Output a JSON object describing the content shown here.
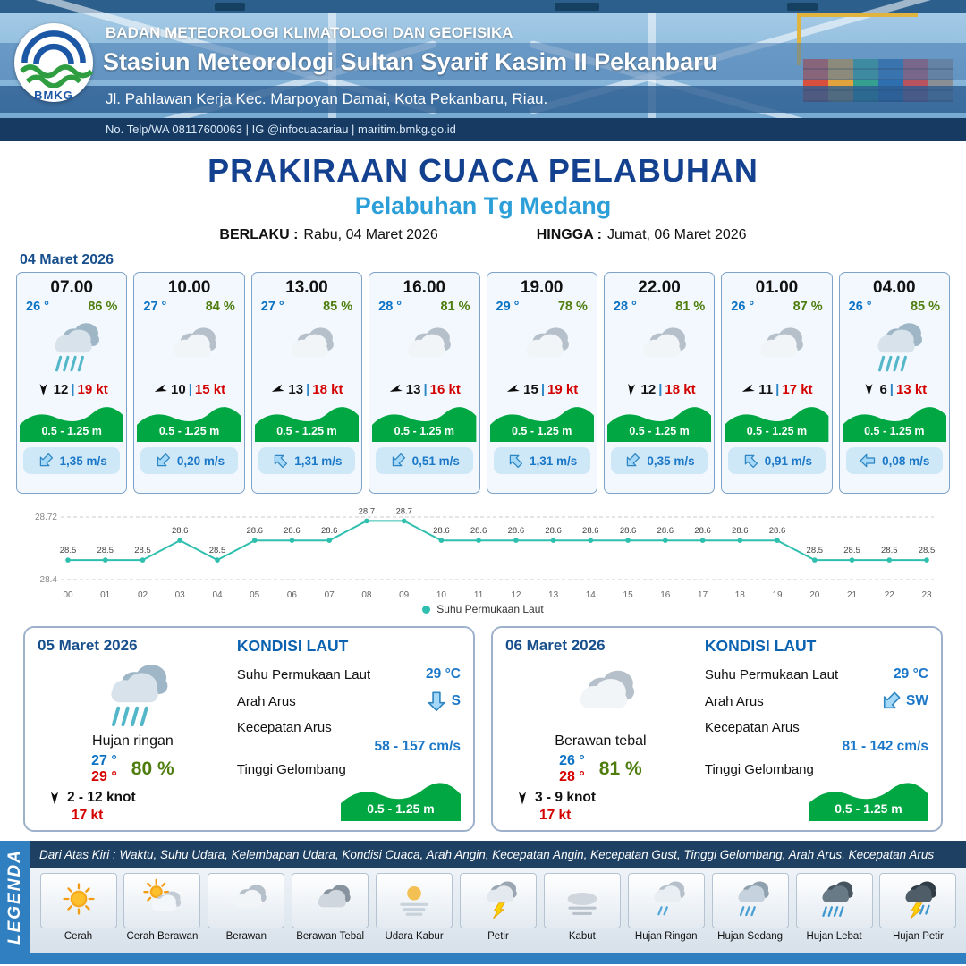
{
  "header": {
    "agency": "BADAN METEOROLOGI KLIMATOLOGI DAN GEOFISIKA",
    "station": "Stasiun Meteorologi Sultan Syarif Kasim II Pekanbaru",
    "address": "Jl. Pahlawan Kerja Kec. Marpoyan Damai, Kota Pekanbaru, Riau.",
    "contact": "No. Telp/WA 08117600063 | IG @infocuacariau | maritim.bmkg.go.id",
    "logo_text": "BMKG"
  },
  "title": {
    "main": "PRAKIRAAN CUACA PELABUHAN",
    "subtitle": "Pelabuhan Tg Medang",
    "valid_label": "BERLAKU :",
    "valid_value": "Rabu, 04 Maret 2026",
    "until_label": "HINGGA :",
    "until_value": "Jumat, 06 Maret 2026"
  },
  "forecast": {
    "date": "04 Maret 2026",
    "sep": "|",
    "cards": [
      {
        "time": "07.00",
        "temp": "26 °",
        "humidity": "86 %",
        "icon": "rain",
        "wind_speed": "12",
        "wind_gust": "19 kt",
        "wind_dir_deg": 180,
        "wave": "0.5 - 1.25 m",
        "current_speed": "1,35 m/s",
        "current_dir_deg": 225
      },
      {
        "time": "10.00",
        "temp": "27 °",
        "humidity": "84 %",
        "icon": "cloud",
        "wind_speed": "10",
        "wind_gust": "15 kt",
        "wind_dir_deg": 250,
        "wave": "0.5 - 1.25 m",
        "current_speed": "0,20 m/s",
        "current_dir_deg": 225
      },
      {
        "time": "13.00",
        "temp": "27 °",
        "humidity": "85 %",
        "icon": "cloud",
        "wind_speed": "13",
        "wind_gust": "18 kt",
        "wind_dir_deg": 250,
        "wave": "0.5 - 1.25 m",
        "current_speed": "1,31 m/s",
        "current_dir_deg": 315
      },
      {
        "time": "16.00",
        "temp": "28 °",
        "humidity": "81 %",
        "icon": "cloud",
        "wind_speed": "13",
        "wind_gust": "16 kt",
        "wind_dir_deg": 250,
        "wave": "0.5 - 1.25 m",
        "current_speed": "0,51 m/s",
        "current_dir_deg": 225
      },
      {
        "time": "19.00",
        "temp": "29 °",
        "humidity": "78 %",
        "icon": "cloud",
        "wind_speed": "15",
        "wind_gust": "19 kt",
        "wind_dir_deg": 250,
        "wave": "0.5 - 1.25 m",
        "current_speed": "1,31 m/s",
        "current_dir_deg": 315
      },
      {
        "time": "22.00",
        "temp": "28 °",
        "humidity": "81 %",
        "icon": "cloud",
        "wind_speed": "12",
        "wind_gust": "18 kt",
        "wind_dir_deg": 185,
        "wave": "0.5 - 1.25 m",
        "current_speed": "0,35 m/s",
        "current_dir_deg": 225
      },
      {
        "time": "01.00",
        "temp": "26 °",
        "humidity": "87 %",
        "icon": "cloud",
        "wind_speed": "11",
        "wind_gust": "17 kt",
        "wind_dir_deg": 250,
        "wave": "0.5 - 1.25 m",
        "current_speed": "0,91 m/s",
        "current_dir_deg": 315
      },
      {
        "time": "04.00",
        "temp": "26 °",
        "humidity": "85 %",
        "icon": "rain",
        "wind_speed": "6",
        "wind_gust": "13 kt",
        "wind_dir_deg": 180,
        "wave": "0.5 - 1.25 m",
        "current_speed": "0,08 m/s",
        "current_dir_deg": 270
      }
    ]
  },
  "chart_data": {
    "type": "line",
    "title": "",
    "x_labels": [
      "00",
      "01",
      "02",
      "03",
      "04",
      "05",
      "06",
      "07",
      "08",
      "09",
      "10",
      "11",
      "12",
      "13",
      "14",
      "15",
      "16",
      "17",
      "18",
      "19",
      "20",
      "21",
      "22",
      "23"
    ],
    "series": [
      {
        "name": "Suhu Permukaan Laut",
        "values": [
          28.5,
          28.5,
          28.5,
          28.6,
          28.5,
          28.6,
          28.6,
          28.6,
          28.7,
          28.7,
          28.6,
          28.6,
          28.6,
          28.6,
          28.6,
          28.6,
          28.6,
          28.6,
          28.6,
          28.6,
          28.5,
          28.5,
          28.5,
          28.5
        ]
      }
    ],
    "ylim": [
      28.4,
      28.72
    ],
    "y_tick_labels": [
      "28.72",
      "28.4"
    ],
    "legend_label": "Suhu Permukaan Laut",
    "line_color": "#2fbfae",
    "grid": "dashed-horizontal",
    "legend_position": "bottom"
  },
  "days": [
    {
      "date": "05 Maret 2026",
      "icon": "rain",
      "condition": "Hujan ringan",
      "temp_min": "27 °",
      "temp_max": "29 °",
      "humidity": "80 %",
      "wind_range": "2 - 12 knot",
      "gust": "17 kt",
      "sea": {
        "title": "KONDISI LAUT",
        "sst_label": "Suhu Permukaan Laut",
        "sst": "29 °C",
        "dir_label": "Arah Arus",
        "dir": "S",
        "dir_deg": 180,
        "speed_label": "Kecepatan Arus",
        "speed": "58  - 157 cm/s",
        "wave_label": "Tinggi Gelombang",
        "wave": "0.5 - 1.25 m"
      }
    },
    {
      "date": "06 Maret 2026",
      "icon": "cloud",
      "condition": "Berawan tebal",
      "temp_min": "26 °",
      "temp_max": "28 °",
      "humidity": "81 %",
      "wind_range": "3  - 9 knot",
      "gust": "17 kt",
      "sea": {
        "title": "KONDISI LAUT",
        "sst_label": "Suhu Permukaan Laut",
        "sst": "29 °C",
        "dir_label": "Arah Arus",
        "dir": "SW",
        "dir_deg": 225,
        "speed_label": "Kecepatan Arus",
        "speed": "81  - 142 cm/s",
        "wave_label": "Tinggi Gelombang",
        "wave": "0.5 - 1.25 m"
      }
    }
  ],
  "legend": {
    "title": "LEGENDA",
    "description": "Dari Atas Kiri : Waktu, Suhu Udara, Kelembapan Udara, Kondisi Cuaca, Arah Angin, Kecepatan Angin, Kecepatan Gust, Tinggi Gelombang, Arah Arus, Kecepatan Arus",
    "items": [
      {
        "label": "Cerah",
        "icon": "sun"
      },
      {
        "label": "Cerah Berawan",
        "icon": "sun-cloud"
      },
      {
        "label": "Berawan",
        "icon": "cloud"
      },
      {
        "label": "Berawan Tebal",
        "icon": "cloud-thick"
      },
      {
        "label": "Udara Kabur",
        "icon": "haze"
      },
      {
        "label": "Petir",
        "icon": "thunder"
      },
      {
        "label": "Kabut",
        "icon": "fog"
      },
      {
        "label": "Hujan Ringan",
        "icon": "rain-light"
      },
      {
        "label": "Hujan Sedang",
        "icon": "rain-mid"
      },
      {
        "label": "Hujan Lebat",
        "icon": "rain-heavy"
      },
      {
        "label": "Hujan Petir",
        "icon": "storm"
      }
    ]
  },
  "colors": {
    "title_blue": "#14418f",
    "subtitle_blue": "#2d9fd8",
    "wave_green": "#00a743",
    "temp_blue": "#0b72c4",
    "humidity_green": "#4e7d0e",
    "gust_red": "#d40000",
    "current_blue": "#1b78c8",
    "sst_line_teal": "#2fbfae"
  }
}
